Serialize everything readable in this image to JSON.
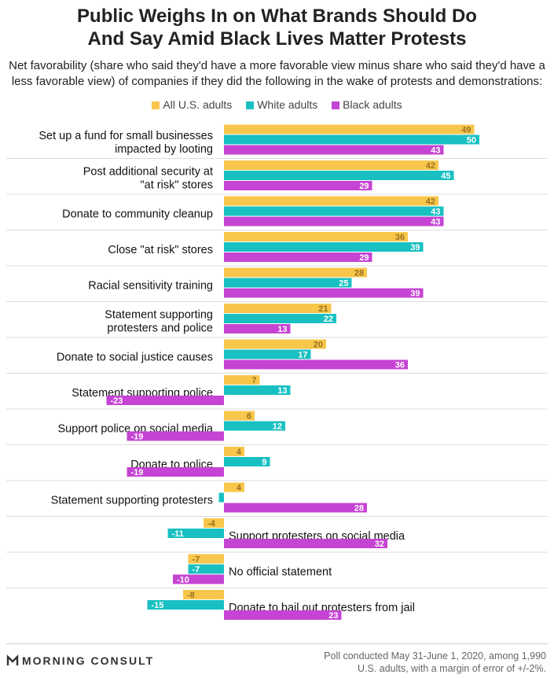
{
  "title_line1": "Public Weighs In on What Brands Should Do",
  "title_line2": "And Say Amid Black Lives Matter Protests",
  "subtitle_line1": "Net favorability (share who said they'd have a more favorable view minus share who said they'd have a",
  "subtitle_line2": "less favorable view) of companies if they did the following in the wake of protests and demonstrations:",
  "footer": {
    "brand": "MORNING CONSULT",
    "source_line1": "Poll conducted May 31-June 1, 2020, among 1,990",
    "source_line2": "U.S. adults, with a margin of error of +/-2%."
  },
  "chart_data": {
    "type": "bar",
    "orientation": "horizontal",
    "grouped": true,
    "legend_position": "top",
    "data_labels": true,
    "series": [
      {
        "name": "All U.S. adults",
        "color": "#f8c64b",
        "label_color": "#9a7020",
        "values": [
          49,
          42,
          42,
          36,
          28,
          21,
          20,
          7,
          6,
          4,
          4,
          -4,
          -7,
          -8
        ]
      },
      {
        "name": "White adults",
        "color": "#19c0c2",
        "label_color": "#ffffff",
        "values": [
          50,
          45,
          43,
          39,
          25,
          22,
          17,
          13,
          12,
          9,
          -1,
          -11,
          -7,
          -15
        ]
      },
      {
        "name": "Black adults",
        "color": "#c544d3",
        "label_color": "#ffffff",
        "values": [
          43,
          29,
          43,
          29,
          39,
          13,
          36,
          -23,
          -19,
          -19,
          28,
          32,
          -10,
          23
        ]
      }
    ],
    "categories": [
      [
        "Set up a fund for small businesses",
        "impacted by looting"
      ],
      [
        "Post additional security at",
        "\"at risk\" stores"
      ],
      [
        "Donate to community cleanup"
      ],
      [
        "Close \"at risk\" stores"
      ],
      [
        "Racial sensitivity training"
      ],
      [
        "Statement supporting",
        "protesters and police"
      ],
      [
        "Donate to social justice causes"
      ],
      [
        "Statement supporting police"
      ],
      [
        "Support police on social media"
      ],
      [
        "Donate to police"
      ],
      [
        "Statement supporting protesters"
      ],
      [
        "Support protesters on social media"
      ],
      [
        "No official statement"
      ],
      [
        "Donate to bail out protesters from jail"
      ]
    ]
  }
}
